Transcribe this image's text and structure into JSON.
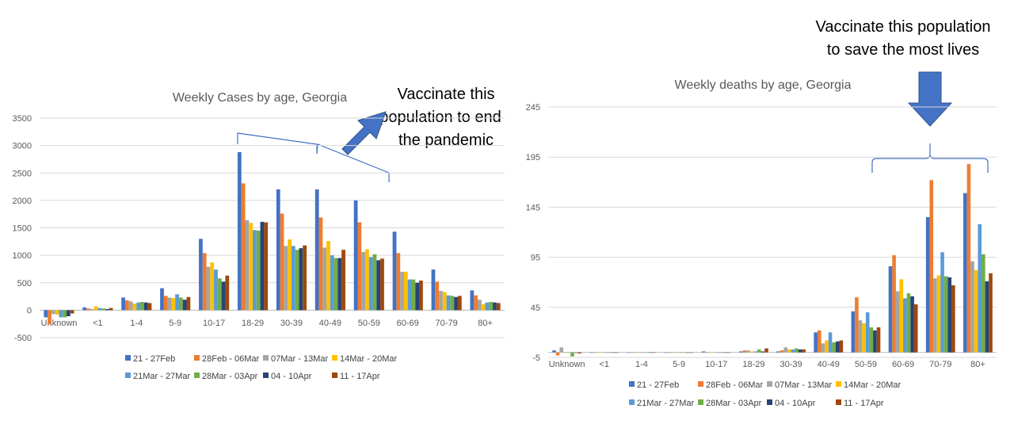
{
  "colors": [
    "#4472C4",
    "#ED7D31",
    "#A5A5A5",
    "#FFC000",
    "#5B9BD5",
    "#70AD47",
    "#264478",
    "#9E480E"
  ],
  "annotations": {
    "left": [
      "Vaccinate this",
      "population to end",
      "the pandemic"
    ],
    "right": [
      "Vaccinate this population",
      "to save the most lives"
    ]
  },
  "chart_data": [
    {
      "type": "bar",
      "title": "Weekly Cases by age, Georgia",
      "xlabel": "",
      "ylabel": "",
      "ylim": [
        -500,
        3500
      ],
      "yticks": [
        "3500",
        "3000",
        "2500",
        "2000",
        "1500",
        "1000",
        "500",
        "0",
        "-500"
      ],
      "grid": true,
      "legend_position": "bottom",
      "categories": [
        "Unknown",
        "<1",
        "1-4",
        "5-9",
        "10-17",
        "18-29",
        "30-39",
        "40-49",
        "50-59",
        "60-69",
        "70-79",
        "80+"
      ],
      "series": [
        {
          "name": "21 - 27Feb",
          "values": [
            -130,
            50,
            230,
            400,
            1300,
            2880,
            2200,
            2200,
            2000,
            1430,
            740,
            360
          ]
        },
        {
          "name": "28Feb - 06Mar",
          "values": [
            -260,
            30,
            180,
            260,
            1040,
            2310,
            1760,
            1690,
            1600,
            1040,
            520,
            270
          ]
        },
        {
          "name": "07Mar - 13Mar",
          "values": [
            -70,
            20,
            160,
            230,
            790,
            1640,
            1170,
            1140,
            1060,
            700,
            350,
            190
          ]
        },
        {
          "name": "14Mar - 20Mar",
          "values": [
            -80,
            70,
            120,
            220,
            870,
            1590,
            1290,
            1260,
            1110,
            700,
            330,
            110
          ]
        },
        {
          "name": "21Mar - 27Mar",
          "values": [
            -130,
            40,
            140,
            290,
            740,
            1460,
            1170,
            1000,
            970,
            560,
            270,
            140
          ]
        },
        {
          "name": "28Mar - 03Apr",
          "values": [
            -130,
            30,
            150,
            230,
            580,
            1450,
            1100,
            950,
            1020,
            560,
            260,
            150
          ]
        },
        {
          "name": "04 - 10Apr",
          "values": [
            -110,
            20,
            140,
            190,
            520,
            1610,
            1130,
            950,
            910,
            500,
            240,
            140
          ]
        },
        {
          "name": "11 - 17Apr",
          "values": [
            -60,
            40,
            130,
            240,
            630,
            1600,
            1180,
            1100,
            940,
            540,
            260,
            130
          ]
        }
      ]
    },
    {
      "type": "bar",
      "title": "Weekly deaths by age, Georgia",
      "xlabel": "",
      "ylabel": "",
      "ylim": [
        -5,
        245
      ],
      "yticks": [
        "245",
        "195",
        "145",
        "95",
        "45",
        "-5"
      ],
      "grid": true,
      "legend_position": "bottom",
      "categories": [
        "Unknown",
        "<1",
        "1-4",
        "5-9",
        "10-17",
        "18-29",
        "30-39",
        "40-49",
        "50-59",
        "60-69",
        "70-79",
        "80+"
      ],
      "series": [
        {
          "name": "21 - 27Feb",
          "values": [
            2,
            0,
            0,
            0,
            1,
            1,
            1,
            20,
            41,
            86,
            135,
            159
          ]
        },
        {
          "name": "28Feb - 06Mar",
          "values": [
            -3,
            0,
            0,
            0,
            0,
            2,
            2,
            22,
            55,
            97,
            172,
            188
          ]
        },
        {
          "name": "07Mar - 13Mar",
          "values": [
            5,
            0,
            0,
            0,
            0,
            2,
            5,
            9,
            32,
            61,
            74,
            91
          ]
        },
        {
          "name": "14Mar - 20Mar",
          "values": [
            0,
            0,
            0,
            0,
            0,
            1,
            3,
            12,
            29,
            73,
            77,
            82
          ]
        },
        {
          "name": "21Mar - 27Mar",
          "values": [
            0,
            0,
            0,
            0,
            0,
            1,
            3,
            20,
            40,
            54,
            100,
            128
          ]
        },
        {
          "name": "28Mar - 03Apr",
          "values": [
            -4,
            0,
            0,
            0,
            0,
            3,
            4,
            10,
            25,
            59,
            76,
            98
          ]
        },
        {
          "name": "04 - 10Apr",
          "values": [
            0,
            0,
            0,
            0,
            0,
            1,
            3,
            11,
            22,
            56,
            75,
            71
          ]
        },
        {
          "name": "11 - 17Apr",
          "values": [
            -1,
            0,
            0,
            0,
            0,
            4,
            3,
            12,
            25,
            48,
            67,
            79
          ]
        }
      ]
    }
  ]
}
